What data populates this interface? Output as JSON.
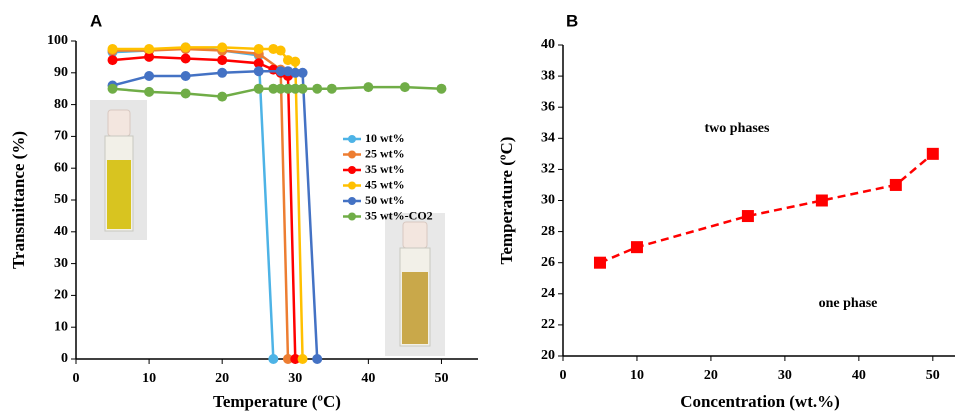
{
  "chart_data": [
    {
      "type": "line",
      "title": "A",
      "x_label": "Temperature (ºC)",
      "y_label": "Transmittance (%)",
      "xlim": [
        0,
        55
      ],
      "xticks": [
        0,
        10,
        20,
        30,
        40,
        50
      ],
      "ylim": [
        0,
        100
      ],
      "yticks": [
        0,
        10,
        20,
        30,
        40,
        50,
        60,
        70,
        80,
        90,
        100
      ],
      "marker": "circle",
      "line_style": "solid",
      "legend": true,
      "series": [
        {
          "name": "10 wt%",
          "color": "#4db3e6",
          "x": [
            5,
            10,
            15,
            20,
            25,
            27
          ],
          "values": [
            96.5,
            97,
            98,
            97,
            95.5,
            0
          ]
        },
        {
          "name": "25 wt%",
          "color": "#ed7d31",
          "x": [
            5,
            10,
            15,
            20,
            25,
            28,
            29
          ],
          "values": [
            97,
            97,
            97.5,
            97,
            96,
            91,
            0
          ]
        },
        {
          "name": "35 wt%",
          "color": "#ff0000",
          "x": [
            5,
            10,
            15,
            20,
            25,
            27,
            28,
            29,
            30
          ],
          "values": [
            94,
            95,
            94.5,
            94,
            93,
            91,
            90,
            89,
            0
          ]
        },
        {
          "name": "45 wt%",
          "color": "#ffc000",
          "x": [
            5,
            10,
            15,
            20,
            25,
            27,
            28,
            29,
            30,
            31
          ],
          "values": [
            97.5,
            97.5,
            98,
            98,
            97.5,
            97.5,
            97,
            94,
            93.5,
            0
          ]
        },
        {
          "name": "50 wt%",
          "color": "#4472c4",
          "x": [
            5,
            10,
            15,
            20,
            25,
            28,
            29,
            30,
            31,
            33
          ],
          "values": [
            86,
            89,
            89,
            90,
            90.5,
            90.5,
            90.5,
            90,
            90,
            0
          ]
        },
        {
          "name": "35 wt%-CO2",
          "color": "#70ad47",
          "x": [
            5,
            10,
            15,
            20,
            25,
            27,
            28,
            29,
            30,
            31,
            33,
            35,
            40,
            45,
            50
          ],
          "values": [
            85,
            84,
            83.5,
            82.5,
            85,
            85,
            85,
            85,
            85,
            85,
            85,
            85,
            85.5,
            85.5,
            85
          ]
        }
      ]
    },
    {
      "type": "line",
      "title": "B",
      "x_label": "Concentration (wt.%)",
      "y_label": "Temperature (ºC)",
      "xlim": [
        0,
        53
      ],
      "xticks": [
        0,
        10,
        20,
        30,
        40,
        50
      ],
      "ylim": [
        20,
        40
      ],
      "yticks": [
        20,
        22,
        24,
        26,
        28,
        30,
        32,
        34,
        36,
        38,
        40
      ],
      "marker": "square",
      "line_style": "dashed",
      "legend": false,
      "annotations": [
        "two phases",
        "one phase"
      ],
      "series": [
        {
          "color": "#ff0000",
          "x": [
            5,
            10,
            25,
            35,
            45,
            50
          ],
          "values": [
            26,
            27,
            29,
            30,
            31,
            33
          ]
        }
      ]
    }
  ]
}
